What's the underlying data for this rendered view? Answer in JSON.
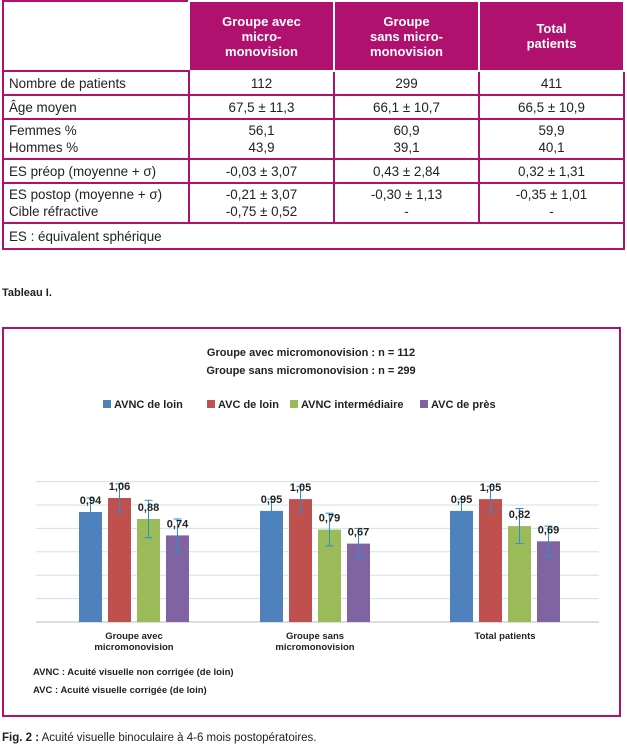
{
  "table": {
    "headers": [
      "",
      "Groupe avec\nmicro-\nmonovision",
      "Groupe\nsans micro-\nmonovision",
      "Total\npatients"
    ],
    "rows": [
      [
        "Nombre de patients",
        "112",
        "299",
        "411"
      ],
      [
        "Âge moyen",
        "67,5 ± 11,3",
        "66,1 ± 10,7",
        "66,5 ± 10,9"
      ],
      [
        "Femmes %\nHommes %",
        "56,1\n43,9",
        "60,9\n39,1",
        "59,9\n40,1"
      ],
      [
        "ES préop (moyenne + σ)",
        "-0,03 ± 3,07",
        "0,43 ± 2,84",
        "0,32 ± 1,31"
      ],
      [
        "ES postop (moyenne + σ)\nCible réfractive",
        "-0,21 ± 3,07\n-0,75 ± 0,52",
        "-0,30 ± 1,13\n-",
        "-0,35 ± 1,01\n-"
      ]
    ],
    "footnote": "ES : équivalent sphérique",
    "caption": "Tableau I."
  },
  "chart_data": {
    "type": "bar",
    "subtitle_lines": [
      "Groupe avec micromonovision : n = 112",
      "Groupe sans micromonovision : n = 299"
    ],
    "categories": [
      "Groupe avec\nmicromonovision",
      "Groupe sans\nmicromonovision",
      "Total patients"
    ],
    "series": [
      {
        "name": "AVNC de loin",
        "color": "#4f81bd",
        "values": [
          0.94,
          0.95,
          0.95
        ],
        "err": [
          0.12,
          0.1,
          0.1
        ]
      },
      {
        "name": "AVC de loin",
        "color": "#c0504d",
        "values": [
          1.06,
          1.05,
          1.05
        ],
        "err": [
          0.12,
          0.11,
          0.11
        ]
      },
      {
        "name": "AVNC intermédiaire",
        "color": "#9bbb59",
        "values": [
          0.88,
          0.79,
          0.82
        ],
        "err": [
          0.16,
          0.14,
          0.15
        ]
      },
      {
        "name": "AVC de près",
        "color": "#8064a2",
        "values": [
          0.74,
          0.67,
          0.69
        ],
        "err": [
          0.14,
          0.13,
          0.13
        ]
      }
    ],
    "value_labels": [
      [
        "0,94",
        "0,95",
        "0,95"
      ],
      [
        "1,06",
        "1,05",
        "1,05"
      ],
      [
        "0,88",
        "0,79",
        "0,82"
      ],
      [
        "0,74",
        "0,67",
        "0,69"
      ]
    ],
    "ylim": [
      0,
      1.3
    ],
    "grid": true,
    "legend_position": "top",
    "notes": [
      "AVNC : Acuité visuelle non corrigée (de loin)",
      "AVC : Acuité visuelle corrigée (de loin)"
    ]
  },
  "figure_caption": {
    "bold": "Fig. 2 :",
    "text": " Acuité visuelle binoculaire à 4-6 mois postopératoires."
  }
}
